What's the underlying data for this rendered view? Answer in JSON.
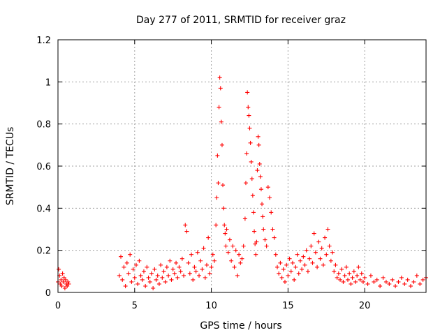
{
  "chart_data": {
    "type": "scatter",
    "title": "Day 277 of 2011, SRMTID for receiver graz",
    "xlabel": "GPS time / hours",
    "ylabel": "SRMTID / TECUs",
    "xlim": [
      0,
      24
    ],
    "ylim": [
      0,
      1.2
    ],
    "xticks": [
      0,
      5,
      10,
      15,
      20
    ],
    "xtick_labels": [
      "0",
      "5",
      "10",
      "15",
      "20"
    ],
    "yticks": [
      0,
      0.2,
      0.4,
      0.6,
      0.8,
      1.0,
      1.2
    ],
    "ytick_labels": [
      "0",
      "0.2",
      "0.4",
      "0.6",
      "0.8",
      "1",
      "1.2"
    ],
    "grid": true,
    "marker": "+",
    "series": [
      {
        "name": "SRMTID",
        "color": "#ff0000",
        "x": [
          0.0,
          0.05,
          0.1,
          0.15,
          0.2,
          0.25,
          0.3,
          0.35,
          0.4,
          0.45,
          0.5,
          0.55,
          0.6,
          0.65,
          0.7,
          4.0,
          4.1,
          4.2,
          4.3,
          4.4,
          4.5,
          4.6,
          4.7,
          4.8,
          4.9,
          5.0,
          5.1,
          5.2,
          5.3,
          5.4,
          5.5,
          5.6,
          5.7,
          5.8,
          5.9,
          6.0,
          6.1,
          6.2,
          6.3,
          6.4,
          6.5,
          6.6,
          6.7,
          6.8,
          6.9,
          7.0,
          7.1,
          7.2,
          7.3,
          7.4,
          7.5,
          7.6,
          7.7,
          7.8,
          7.9,
          8.0,
          8.1,
          8.2,
          8.3,
          8.4,
          8.5,
          8.6,
          8.7,
          8.8,
          8.9,
          9.0,
          9.1,
          9.2,
          9.3,
          9.4,
          9.5,
          9.6,
          9.7,
          9.8,
          9.9,
          10.0,
          10.1,
          10.2,
          10.3,
          10.35,
          10.4,
          10.45,
          10.5,
          10.55,
          10.6,
          10.65,
          10.7,
          10.75,
          10.8,
          10.85,
          10.9,
          10.95,
          11.0,
          11.1,
          11.2,
          11.3,
          11.4,
          11.5,
          11.6,
          11.7,
          11.8,
          11.9,
          12.0,
          12.1,
          12.2,
          12.25,
          12.3,
          12.35,
          12.4,
          12.45,
          12.5,
          12.55,
          12.6,
          12.65,
          12.7,
          12.75,
          12.8,
          12.85,
          12.9,
          12.95,
          13.0,
          13.05,
          13.1,
          13.15,
          13.2,
          13.25,
          13.3,
          13.35,
          13.4,
          13.5,
          13.6,
          13.7,
          13.8,
          13.9,
          14.0,
          14.1,
          14.2,
          14.3,
          14.4,
          14.5,
          14.6,
          14.7,
          14.8,
          14.9,
          15.0,
          15.1,
          15.2,
          15.3,
          15.4,
          15.5,
          15.6,
          15.7,
          15.8,
          15.9,
          16.0,
          16.1,
          16.2,
          16.3,
          16.4,
          16.5,
          16.6,
          16.7,
          16.8,
          16.9,
          17.0,
          17.1,
          17.2,
          17.3,
          17.4,
          17.5,
          17.6,
          17.7,
          17.8,
          17.9,
          18.0,
          18.1,
          18.2,
          18.3,
          18.4,
          18.5,
          18.6,
          18.7,
          18.8,
          18.9,
          19.0,
          19.1,
          19.2,
          19.3,
          19.4,
          19.5,
          19.6,
          19.7,
          19.8,
          19.9,
          20.0,
          20.2,
          20.4,
          20.6,
          20.8,
          21.0,
          21.2,
          21.4,
          21.6,
          21.8,
          22.0,
          22.2,
          22.4,
          22.6,
          22.8,
          23.0,
          23.2,
          23.4,
          23.6,
          23.8,
          24.0
        ],
        "y": [
          0.05,
          0.11,
          0.08,
          0.04,
          0.06,
          0.03,
          0.09,
          0.05,
          0.07,
          0.02,
          0.06,
          0.04,
          0.03,
          0.05,
          0.04,
          0.08,
          0.17,
          0.06,
          0.12,
          0.03,
          0.14,
          0.09,
          0.18,
          0.05,
          0.11,
          0.07,
          0.13,
          0.04,
          0.15,
          0.08,
          0.06,
          0.1,
          0.03,
          0.12,
          0.07,
          0.05,
          0.09,
          0.02,
          0.11,
          0.06,
          0.08,
          0.04,
          0.13,
          0.07,
          0.1,
          0.05,
          0.12,
          0.08,
          0.15,
          0.06,
          0.11,
          0.09,
          0.14,
          0.07,
          0.12,
          0.1,
          0.16,
          0.08,
          0.32,
          0.29,
          0.14,
          0.09,
          0.18,
          0.06,
          0.12,
          0.1,
          0.19,
          0.08,
          0.15,
          0.11,
          0.21,
          0.07,
          0.13,
          0.26,
          0.09,
          0.12,
          0.18,
          0.15,
          0.32,
          0.45,
          0.65,
          0.52,
          0.88,
          1.02,
          0.97,
          0.81,
          0.7,
          0.51,
          0.4,
          0.32,
          0.28,
          0.22,
          0.3,
          0.19,
          0.25,
          0.15,
          0.22,
          0.12,
          0.2,
          0.08,
          0.18,
          0.14,
          0.16,
          0.22,
          0.35,
          0.52,
          0.66,
          0.95,
          0.88,
          0.84,
          0.78,
          0.71,
          0.62,
          0.54,
          0.46,
          0.38,
          0.29,
          0.23,
          0.18,
          0.24,
          0.58,
          0.74,
          0.7,
          0.61,
          0.55,
          0.49,
          0.42,
          0.36,
          0.3,
          0.25,
          0.22,
          0.5,
          0.45,
          0.38,
          0.3,
          0.26,
          0.18,
          0.12,
          0.09,
          0.14,
          0.07,
          0.11,
          0.05,
          0.13,
          0.08,
          0.16,
          0.1,
          0.14,
          0.06,
          0.12,
          0.18,
          0.09,
          0.15,
          0.11,
          0.17,
          0.13,
          0.2,
          0.1,
          0.16,
          0.22,
          0.14,
          0.28,
          0.19,
          0.12,
          0.24,
          0.16,
          0.21,
          0.13,
          0.26,
          0.18,
          0.3,
          0.22,
          0.15,
          0.19,
          0.1,
          0.13,
          0.07,
          0.09,
          0.06,
          0.11,
          0.05,
          0.08,
          0.12,
          0.06,
          0.09,
          0.04,
          0.07,
          0.1,
          0.05,
          0.08,
          0.12,
          0.06,
          0.09,
          0.05,
          0.07,
          0.04,
          0.08,
          0.05,
          0.06,
          0.03,
          0.07,
          0.05,
          0.04,
          0.06,
          0.03,
          0.05,
          0.07,
          0.04,
          0.06,
          0.03,
          0.05,
          0.08,
          0.04,
          0.06,
          0.07
        ]
      }
    ]
  }
}
